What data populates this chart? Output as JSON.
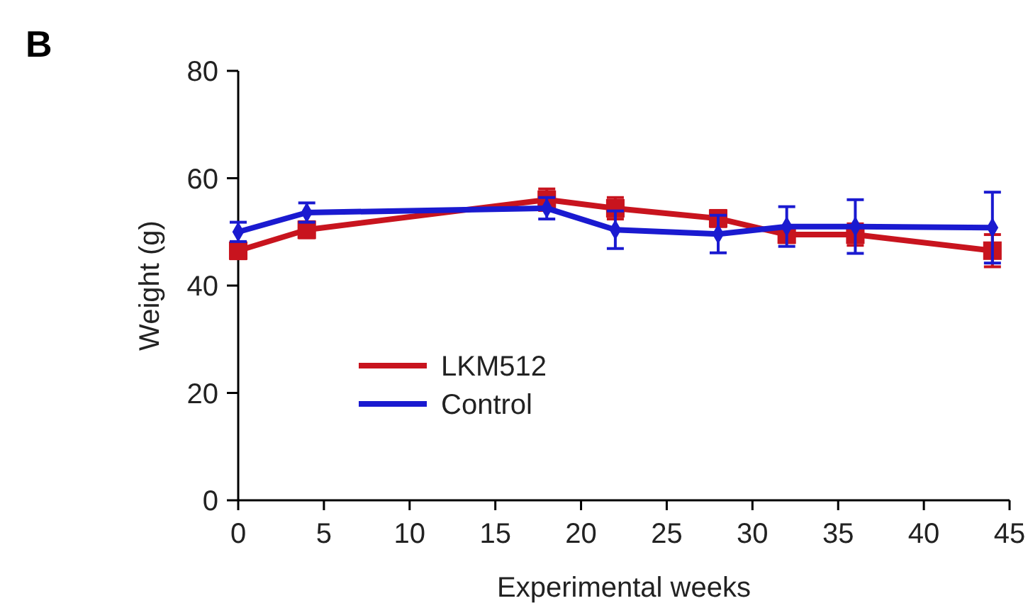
{
  "chart_data": {
    "type": "line",
    "title": "B",
    "xlabel": "Experimental weeks",
    "ylabel": "Weight (g)",
    "x": [
      0,
      4,
      18,
      22,
      28,
      32,
      36,
      44
    ],
    "xlim": [
      0,
      45
    ],
    "xticks": [
      0,
      5,
      10,
      15,
      20,
      25,
      30,
      35,
      40,
      45
    ],
    "ylim": [
      0,
      80
    ],
    "yticks": [
      0,
      20,
      40,
      60,
      80
    ],
    "legend": "bottom left",
    "grid": false,
    "series": [
      {
        "name": "LKM512",
        "color": "#c8141e",
        "marker": "square",
        "values": [
          46.5,
          50.4,
          56,
          54.4,
          52.5,
          49.5,
          49.5,
          46.5
        ],
        "errors": [
          1.5,
          1.5,
          2,
          2,
          1.5,
          1.5,
          2,
          3
        ]
      },
      {
        "name": "Control",
        "color": "#1a1ad0",
        "marker": "diamond",
        "values": [
          50,
          53.6,
          54.4,
          50.4,
          49.6,
          51,
          51,
          50.8
        ],
        "errors": [
          1.8,
          1.8,
          2,
          3.5,
          3.5,
          3.7,
          5,
          6.6
        ]
      }
    ]
  }
}
